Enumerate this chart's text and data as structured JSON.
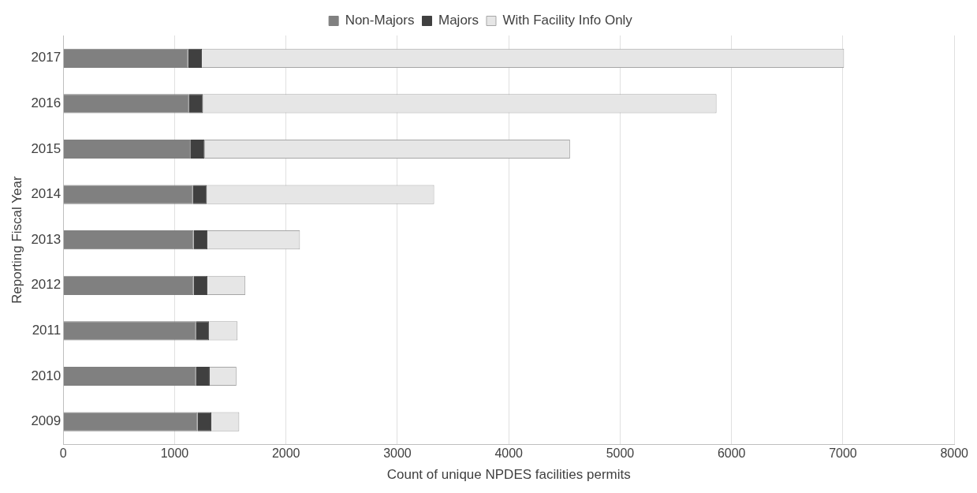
{
  "chart_data": {
    "type": "bar",
    "orientation": "horizontal",
    "stacked": true,
    "xlabel": "Count of unique NPDES facilities permits",
    "ylabel": "Reporting Fiscal Year",
    "categories": [
      "2017",
      "2016",
      "2015",
      "2014",
      "2013",
      "2012",
      "2011",
      "2010",
      "2009"
    ],
    "series": [
      {
        "name": "Non-Majors",
        "color": "#808080",
        "values": [
          1120,
          1130,
          1145,
          1165,
          1170,
          1170,
          1190,
          1190,
          1205
        ]
      },
      {
        "name": "Majors",
        "color": "#404040",
        "values": [
          125,
          125,
          125,
          125,
          125,
          125,
          120,
          125,
          125
        ]
      },
      {
        "name": "With Facility Info Only",
        "color": "#e6e6e6",
        "values": [
          5765,
          4610,
          3280,
          2040,
          830,
          340,
          255,
          240,
          250
        ]
      }
    ],
    "xlim": [
      0,
      8000
    ],
    "xticks": [
      0,
      1000,
      2000,
      3000,
      4000,
      5000,
      6000,
      7000,
      8000
    ],
    "grid": "x",
    "legend": "top"
  }
}
